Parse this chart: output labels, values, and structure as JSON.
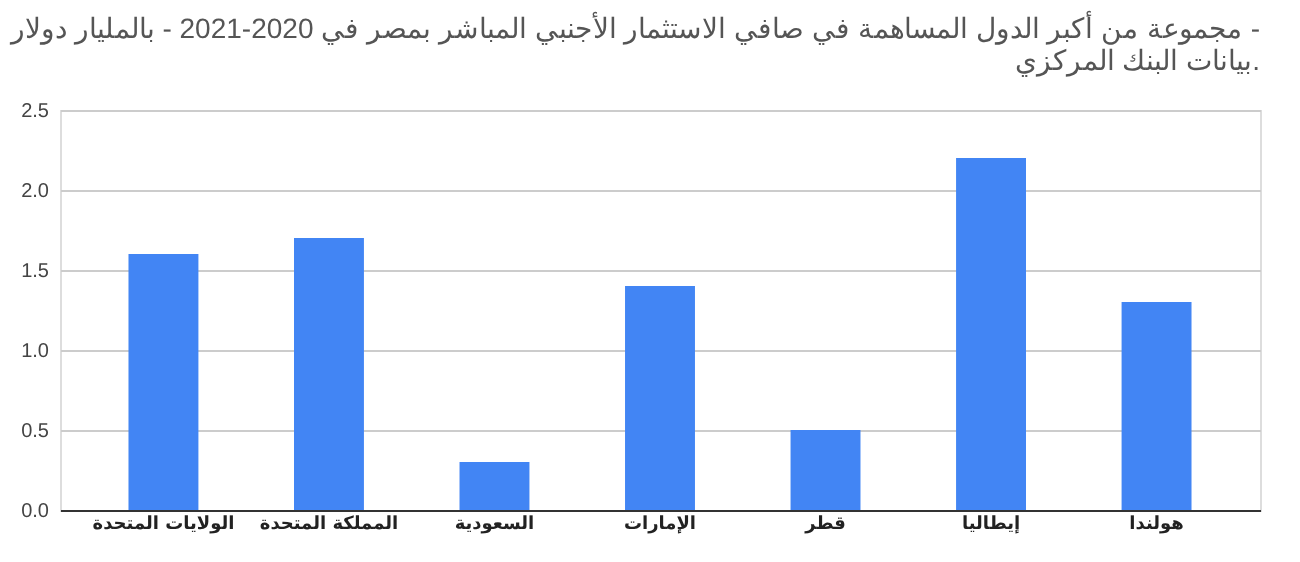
{
  "chart_data": {
    "type": "bar",
    "title": "مجموعة من أكبر الدول المساهمة في صافي الاستثمار الأجنبي المباشر بمصر في 2020-2021 - بالمليار دولار - بيانات البنك المركزي.",
    "categories": [
      "الولايات المتحدة",
      "المملكة المتحدة",
      "السعودية",
      "الإمارات",
      "قطر",
      "إيطاليا",
      "هولندا"
    ],
    "values": [
      1.6,
      1.7,
      0.3,
      1.4,
      0.5,
      2.2,
      1.3
    ],
    "color": "#4285f4",
    "ylim": [
      0,
      2.5
    ],
    "yticks": [
      {
        "value": 0,
        "label": "0.0"
      },
      {
        "value": 0.5,
        "label": "0.5"
      },
      {
        "value": 1,
        "label": "1.0"
      },
      {
        "value": 1.5,
        "label": "1.5"
      },
      {
        "value": 2,
        "label": "2.0"
      },
      {
        "value": 2.5,
        "label": "2.5"
      }
    ],
    "grid": "y"
  }
}
